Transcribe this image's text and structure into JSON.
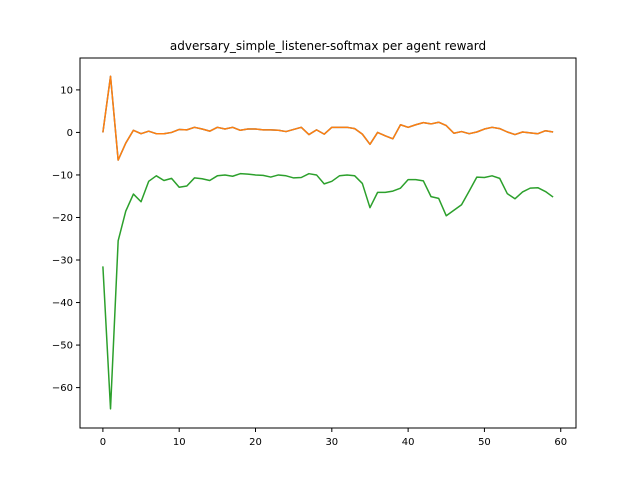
{
  "chart_data": {
    "type": "line",
    "title": "adversary_simple_listener-softmax per agent reward",
    "xlabel": "",
    "ylabel": "",
    "xlim": [
      -3,
      62
    ],
    "ylim": [
      -69.5,
      17.5
    ],
    "xticks": [
      0,
      10,
      20,
      30,
      40,
      50,
      60
    ],
    "yticks": [
      10,
      0,
      -10,
      -20,
      -30,
      -40,
      -50,
      -60
    ],
    "grid": false,
    "x": [
      0,
      1,
      2,
      3,
      4,
      5,
      6,
      7,
      8,
      9,
      10,
      11,
      12,
      13,
      14,
      15,
      16,
      17,
      18,
      19,
      20,
      21,
      22,
      23,
      24,
      25,
      26,
      27,
      28,
      29,
      30,
      31,
      32,
      33,
      34,
      35,
      36,
      37,
      38,
      39,
      40,
      41,
      42,
      43,
      44,
      45,
      46,
      47,
      48,
      49,
      50,
      51,
      52,
      53,
      54,
      55,
      56,
      57,
      58,
      59
    ],
    "series": [
      {
        "color": "#1f77b4",
        "values": [
          0.0,
          13.2,
          -6.5,
          -2.5,
          0.5,
          -0.3,
          0.3,
          -0.3,
          -0.3,
          0.0,
          0.7,
          0.6,
          1.2,
          0.8,
          0.3,
          1.2,
          0.8,
          1.2,
          0.5,
          0.8,
          0.8,
          0.6,
          0.6,
          0.5,
          0.2,
          0.7,
          1.2,
          -0.5,
          0.6,
          -0.4,
          1.2,
          1.2,
          1.2,
          0.9,
          -0.4,
          -2.8,
          0.0,
          -0.8,
          -1.5,
          1.8,
          1.2,
          1.8,
          2.3,
          2.0,
          2.4,
          1.6,
          -0.2,
          0.2,
          -0.3,
          0.1,
          0.8,
          1.2,
          0.9,
          0.1,
          -0.5,
          0.1,
          -0.1,
          -0.3,
          0.4,
          0.1
        ]
      },
      {
        "color": "#ff7f0e",
        "values": [
          0.0,
          13.2,
          -6.5,
          -2.5,
          0.5,
          -0.3,
          0.3,
          -0.3,
          -0.3,
          0.0,
          0.7,
          0.6,
          1.2,
          0.8,
          0.3,
          1.2,
          0.8,
          1.2,
          0.5,
          0.8,
          0.8,
          0.6,
          0.6,
          0.5,
          0.2,
          0.7,
          1.2,
          -0.5,
          0.6,
          -0.4,
          1.2,
          1.2,
          1.2,
          0.9,
          -0.4,
          -2.8,
          0.0,
          -0.8,
          -1.5,
          1.8,
          1.2,
          1.8,
          2.3,
          2.0,
          2.4,
          1.6,
          -0.2,
          0.2,
          -0.3,
          0.1,
          0.8,
          1.2,
          0.9,
          0.1,
          -0.5,
          0.1,
          -0.1,
          -0.3,
          0.4,
          0.1
        ]
      },
      {
        "color": "#2ca02c",
        "values": [
          -31.5,
          -65.0,
          -25.5,
          -18.5,
          -14.5,
          -16.3,
          -11.5,
          -10.2,
          -11.3,
          -10.8,
          -12.9,
          -12.6,
          -10.7,
          -10.9,
          -11.3,
          -10.2,
          -10.0,
          -10.3,
          -9.7,
          -9.8,
          -10.0,
          -10.1,
          -10.5,
          -10.0,
          -10.2,
          -10.7,
          -10.6,
          -9.7,
          -10.0,
          -12.1,
          -11.5,
          -10.2,
          -10.0,
          -10.2,
          -12.0,
          -17.7,
          -14.1,
          -14.1,
          -13.8,
          -13.1,
          -11.1,
          -11.1,
          -11.4,
          -15.1,
          -15.5,
          -19.6,
          -18.3,
          -17.0,
          -13.8,
          -10.5,
          -10.6,
          -10.2,
          -10.8,
          -14.4,
          -15.6,
          -14.0,
          -13.1,
          -13.0,
          -13.9,
          -15.2
        ]
      }
    ]
  }
}
